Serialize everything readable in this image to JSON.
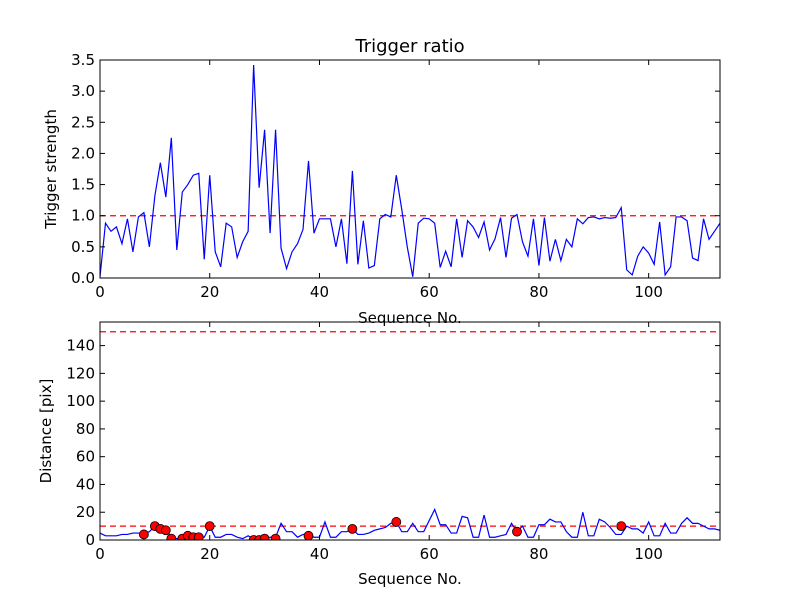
{
  "chart_data": [
    {
      "type": "line",
      "title": "Trigger ratio",
      "xlabel": "Sequence No.",
      "ylabel": "Trigger strength",
      "xlim": [
        0,
        113
      ],
      "ylim": [
        0,
        3.5
      ],
      "xticks": [
        "0",
        "20",
        "40",
        "60",
        "80",
        "100"
      ],
      "yticks": [
        "0.0",
        "0.5",
        "1.0",
        "1.5",
        "2.0",
        "2.5",
        "3.0",
        "3.5"
      ],
      "grid": false,
      "colors": {
        "series": "#0000ff",
        "threshold": "#ff0000"
      },
      "threshold": 1.0,
      "series": [
        {
          "x": [
            0,
            1,
            2,
            3,
            4,
            5,
            6,
            7,
            8,
            9,
            10,
            11,
            12,
            13,
            14,
            15,
            16,
            17,
            18,
            19,
            20,
            21,
            22,
            23,
            24,
            25,
            26,
            27,
            28,
            29,
            30,
            31,
            32,
            33,
            34,
            35,
            36,
            37,
            38,
            39,
            40,
            41,
            42,
            43,
            44,
            45,
            46,
            47,
            48,
            49,
            50,
            51,
            52,
            53,
            54,
            55,
            56,
            57,
            58,
            59,
            60,
            61,
            62,
            63,
            64,
            65,
            66,
            67,
            68,
            69,
            70,
            71,
            72,
            73,
            74,
            75,
            76,
            77,
            78,
            79,
            80,
            81,
            82,
            83,
            84,
            85,
            86,
            87,
            88,
            89,
            90,
            91,
            92,
            93,
            94,
            95,
            96,
            97,
            98,
            99,
            100,
            101,
            102,
            103,
            104,
            105,
            106,
            107,
            108,
            109,
            110,
            111,
            112,
            113
          ],
          "y": [
            0.02,
            0.88,
            0.75,
            0.82,
            0.55,
            0.95,
            0.42,
            0.98,
            1.05,
            0.5,
            1.32,
            1.85,
            1.3,
            2.25,
            0.45,
            1.38,
            1.5,
            1.65,
            1.68,
            0.3,
            1.65,
            0.42,
            0.18,
            0.88,
            0.82,
            0.33,
            0.58,
            0.75,
            3.42,
            1.45,
            2.38,
            0.72,
            2.38,
            0.48,
            0.15,
            0.42,
            0.55,
            0.78,
            1.88,
            0.72,
            0.95,
            0.95,
            0.95,
            0.5,
            0.95,
            0.23,
            1.72,
            0.22,
            0.92,
            0.16,
            0.2,
            0.95,
            1.02,
            0.98,
            1.65,
            1.1,
            0.5,
            0.02,
            0.88,
            0.96,
            0.95,
            0.88,
            0.17,
            0.43,
            0.18,
            0.95,
            0.33,
            0.92,
            0.82,
            0.65,
            0.9,
            0.45,
            0.63,
            0.97,
            0.33,
            0.96,
            1.02,
            0.58,
            0.35,
            0.95,
            0.2,
            0.97,
            0.27,
            0.62,
            0.28,
            0.62,
            0.5,
            0.95,
            0.87,
            0.97,
            0.98,
            0.95,
            0.97,
            0.96,
            0.97,
            1.13,
            0.13,
            0.05,
            0.35,
            0.5,
            0.4,
            0.22,
            0.9,
            0.05,
            0.18,
            0.98,
            0.98,
            0.92,
            0.32,
            0.28,
            0.95,
            0.62,
            0.75,
            0.88
          ]
        }
      ]
    },
    {
      "type": "line",
      "title": "",
      "xlabel": "Sequence No.",
      "ylabel": "Distance [pix]",
      "xlim": [
        0,
        113
      ],
      "ylim": [
        0,
        157
      ],
      "xticks": [
        "0",
        "20",
        "40",
        "60",
        "80",
        "100"
      ],
      "yticks": [
        "0",
        "20",
        "40",
        "60",
        "80",
        "100",
        "120",
        "140"
      ],
      "grid": false,
      "colors": {
        "series": "#0000ff",
        "markers": "#ff0000",
        "threshold": "#ff0000"
      },
      "thresholds": [
        10,
        150
      ],
      "series": [
        {
          "x": [
            0,
            1,
            2,
            3,
            4,
            5,
            6,
            7,
            8,
            9,
            10,
            11,
            12,
            13,
            14,
            15,
            16,
            17,
            18,
            19,
            20,
            21,
            22,
            23,
            24,
            25,
            26,
            27,
            28,
            29,
            30,
            31,
            32,
            33,
            34,
            35,
            36,
            37,
            38,
            39,
            40,
            41,
            42,
            43,
            44,
            45,
            46,
            47,
            48,
            49,
            50,
            51,
            52,
            53,
            54,
            55,
            56,
            57,
            58,
            59,
            60,
            61,
            62,
            63,
            64,
            65,
            66,
            67,
            68,
            69,
            70,
            71,
            72,
            73,
            74,
            75,
            76,
            77,
            78,
            79,
            80,
            81,
            82,
            83,
            84,
            85,
            86,
            87,
            88,
            89,
            90,
            91,
            92,
            93,
            94,
            95,
            96,
            97,
            98,
            99,
            100,
            101,
            102,
            103,
            104,
            105,
            106,
            107,
            108,
            109,
            110,
            111,
            112,
            113
          ],
          "y": [
            5,
            3,
            3,
            3,
            4,
            4,
            5,
            5,
            5,
            6,
            10,
            9,
            8,
            2,
            1,
            2,
            3,
            3,
            2,
            2,
            10,
            2,
            2,
            4,
            4,
            2,
            1,
            3,
            1,
            1,
            1,
            2,
            2,
            12,
            6,
            6,
            2,
            4,
            4,
            2,
            2,
            13,
            2,
            2,
            6,
            6,
            8,
            4,
            4,
            5,
            7,
            8,
            9,
            12,
            13,
            6,
            6,
            12,
            6,
            6,
            14,
            22,
            11,
            11,
            5,
            5,
            17,
            16,
            2,
            2,
            18,
            2,
            2,
            3,
            4,
            12,
            6,
            10,
            2,
            2,
            11,
            11,
            15,
            13,
            13,
            6,
            2,
            2,
            20,
            3,
            3,
            15,
            13,
            9,
            4,
            4,
            10,
            8,
            8,
            5,
            13,
            3,
            3,
            12,
            5,
            5,
            12,
            16,
            12,
            12,
            10,
            8,
            8,
            7
          ]
        },
        {
          "name": "",
          "marker": "circle",
          "x": [
            8,
            10,
            11,
            12,
            13,
            15,
            16,
            17,
            18,
            20,
            28,
            29,
            30,
            32,
            38,
            46,
            54,
            76,
            95
          ],
          "y": [
            4,
            10,
            8,
            7,
            1,
            1,
            3,
            2,
            2,
            10,
            0,
            0,
            1,
            1,
            3,
            8,
            13,
            6,
            10
          ]
        }
      ]
    }
  ]
}
